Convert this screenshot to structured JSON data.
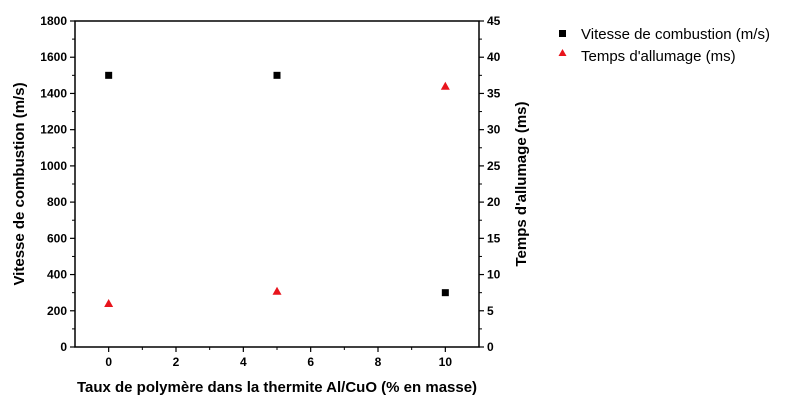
{
  "chart_data": {
    "type": "scatter",
    "x_label": "Taux de polymère dans la thermite Al/CuO (% en masse)",
    "y_left_label": "Vitesse de combustion (m/s)",
    "y_right_label": "Temps d'allumage (ms)",
    "x_range": [
      -1,
      11
    ],
    "y_left_range": [
      0,
      1800
    ],
    "y_right_range": [
      0,
      45
    ],
    "x_ticks": [
      0,
      2,
      4,
      6,
      8,
      10
    ],
    "y_left_ticks": [
      0,
      200,
      400,
      600,
      800,
      1000,
      1200,
      1400,
      1600,
      1800
    ],
    "y_right_ticks": [
      0,
      5,
      10,
      15,
      20,
      25,
      30,
      35,
      40,
      45
    ],
    "grid": false,
    "legend_position": "top-right-outside",
    "series": [
      {
        "name": "Vitesse de combustion (m/s)",
        "axis": "left",
        "marker": "square",
        "color": "#000000",
        "x": [
          0,
          5,
          10
        ],
        "y": [
          1500,
          1500,
          300
        ]
      },
      {
        "name": "Temps d'allumage (ms)",
        "axis": "right",
        "marker": "triangle",
        "color": "#e8141c",
        "x": [
          0,
          5,
          10
        ],
        "y": [
          6,
          7.7,
          36
        ]
      }
    ]
  }
}
